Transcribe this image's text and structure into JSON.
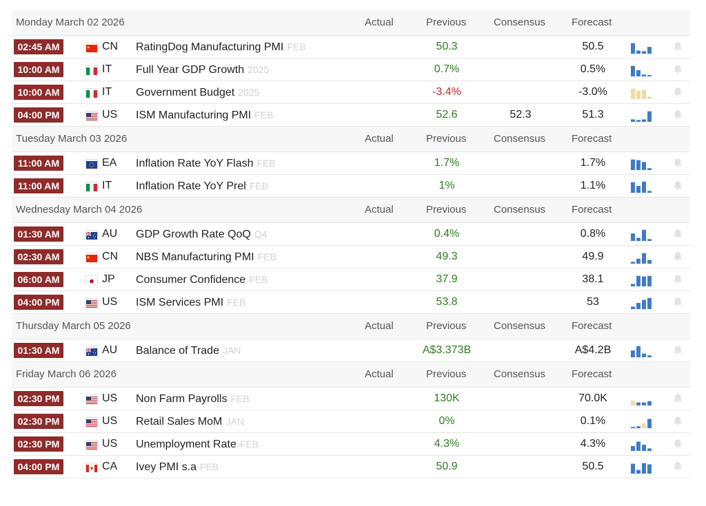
{
  "columns": {
    "actual": "Actual",
    "previous": "Previous",
    "consensus": "Consensus",
    "forecast": "Forecast"
  },
  "colors": {
    "time_badge": "#8e2b2b",
    "positive": "#2e7d1f",
    "negative": "#b52a2a",
    "spark_blue": "#3f7cc4",
    "spark_tan": "#f0dba8"
  },
  "days": [
    {
      "date": "Monday March 02 2026",
      "events": [
        {
          "time": "02:45 AM",
          "country": "CN",
          "flag": "cn",
          "event": "RatingDog Manufacturing PMI",
          "ref": "FEB",
          "actual": "",
          "previous": "50.3",
          "previous_sign": "pos",
          "consensus": "",
          "forecast": "50.5",
          "spark": [
            0.85,
            0.25,
            0.2,
            0.55
          ],
          "spark_color": "blue"
        },
        {
          "time": "10:00 AM",
          "country": "IT",
          "flag": "it",
          "event": "Full Year GDP Growth",
          "ref": "2025",
          "actual": "",
          "previous": "0.7%",
          "previous_sign": "pos",
          "consensus": "",
          "forecast": "0.5%",
          "spark": [
            0.85,
            0.5,
            0.15,
            0.1
          ],
          "spark_color": "blue"
        },
        {
          "time": "10:00 AM",
          "country": "IT",
          "flag": "it",
          "event": "Government Budget",
          "ref": "2025",
          "actual": "",
          "previous": "-3.4%",
          "previous_sign": "neg",
          "consensus": "",
          "forecast": "-3.0%",
          "spark": [
            0.85,
            0.7,
            0.75,
            0.2
          ],
          "spark_color": "tan"
        },
        {
          "time": "04:00 PM",
          "country": "US",
          "flag": "us",
          "event": "ISM Manufacturing PMI",
          "ref": "FEB",
          "actual": "",
          "previous": "52.6",
          "previous_sign": "pos",
          "consensus": "52.3",
          "forecast": "51.3",
          "spark": [
            0.2,
            0.15,
            0.2,
            0.85
          ],
          "spark_color": "blue"
        }
      ]
    },
    {
      "date": "Tuesday March 03 2026",
      "events": [
        {
          "time": "11:00 AM",
          "country": "EA",
          "flag": "eu",
          "event": "Inflation Rate YoY Flash",
          "ref": "FEB",
          "actual": "",
          "previous": "1.7%",
          "previous_sign": "pos",
          "consensus": "",
          "forecast": "1.7%",
          "spark": [
            0.85,
            0.8,
            0.65,
            0.15
          ],
          "spark_color": "blue"
        },
        {
          "time": "11:00 AM",
          "country": "IT",
          "flag": "it",
          "event": "Inflation Rate YoY Prel",
          "ref": "FEB",
          "actual": "",
          "previous": "1%",
          "previous_sign": "pos",
          "consensus": "",
          "forecast": "1.1%",
          "spark": [
            0.85,
            0.55,
            0.9,
            0.15
          ],
          "spark_color": "blue"
        }
      ]
    },
    {
      "date": "Wednesday March 04 2026",
      "events": [
        {
          "time": "01:30 AM",
          "country": "AU",
          "flag": "au",
          "event": "GDP Growth Rate QoQ",
          "ref": "Q4",
          "actual": "",
          "previous": "0.4%",
          "previous_sign": "pos",
          "consensus": "",
          "forecast": "0.8%",
          "spark": [
            0.6,
            0.25,
            0.9,
            0.15
          ],
          "spark_color": "blue"
        },
        {
          "time": "02:30 AM",
          "country": "CN",
          "flag": "cn",
          "event": "NBS Manufacturing PMI",
          "ref": "FEB",
          "actual": "",
          "previous": "49.3",
          "previous_sign": "pos",
          "consensus": "",
          "forecast": "49.9",
          "spark": [
            0.15,
            0.4,
            0.85,
            0.3
          ],
          "spark_color": "blue"
        },
        {
          "time": "06:00 AM",
          "country": "JP",
          "flag": "jp",
          "event": "Consumer Confidence",
          "ref": "FEB",
          "actual": "",
          "previous": "37.9",
          "previous_sign": "pos",
          "consensus": "",
          "forecast": "38.1",
          "spark": [
            0.2,
            0.85,
            0.8,
            0.85
          ],
          "spark_color": "blue"
        },
        {
          "time": "04:00 PM",
          "country": "US",
          "flag": "us",
          "event": "ISM Services PMI",
          "ref": "FEB",
          "actual": "",
          "previous": "53.8",
          "previous_sign": "pos",
          "consensus": "",
          "forecast": "53",
          "spark": [
            0.2,
            0.5,
            0.75,
            0.9
          ],
          "spark_color": "blue"
        }
      ]
    },
    {
      "date": "Thursday March 05 2026",
      "events": [
        {
          "time": "01:30 AM",
          "country": "AU",
          "flag": "au",
          "event": "Balance of Trade",
          "ref": "JAN",
          "actual": "",
          "previous": "A$3.373B",
          "previous_sign": "pos",
          "consensus": "",
          "forecast": "A$4.2B",
          "spark": [
            0.55,
            0.9,
            0.3,
            0.15
          ],
          "spark_color": "blue"
        }
      ]
    },
    {
      "date": "Friday March 06 2026",
      "events": [
        {
          "time": "02:30 PM",
          "country": "US",
          "flag": "us",
          "event": "Non Farm Payrolls",
          "ref": "FEB",
          "actual": "",
          "previous": "130K",
          "previous_sign": "pos",
          "consensus": "",
          "forecast": "70.0K",
          "spark": [
            0.4,
            0.25,
            0.25,
            0.35
          ],
          "spark_color": "mixed_payrolls"
        },
        {
          "time": "02:30 PM",
          "country": "US",
          "flag": "us",
          "event": "Retail Sales MoM",
          "ref": "JAN",
          "actual": "",
          "previous": "0%",
          "previous_sign": "pos",
          "consensus": "",
          "forecast": "0.1%",
          "spark": [
            0.1,
            0.15,
            0.4,
            0.75
          ],
          "spark_color": "mixed_retail"
        },
        {
          "time": "02:30 PM",
          "country": "US",
          "flag": "us",
          "event": "Unemployment Rate",
          "ref": "FEB",
          "actual": "",
          "previous": "4.3%",
          "previous_sign": "pos",
          "consensus": "",
          "forecast": "4.3%",
          "spark": [
            0.4,
            0.75,
            0.5,
            0.2
          ],
          "spark_color": "blue"
        },
        {
          "time": "04:00 PM",
          "country": "CA",
          "flag": "ca",
          "event": "Ivey PMI s.a",
          "ref": "FEB",
          "actual": "",
          "previous": "50.9",
          "previous_sign": "pos",
          "consensus": "",
          "forecast": "50.5",
          "spark": [
            0.8,
            0.3,
            0.85,
            0.75
          ],
          "spark_color": "blue"
        }
      ]
    }
  ]
}
